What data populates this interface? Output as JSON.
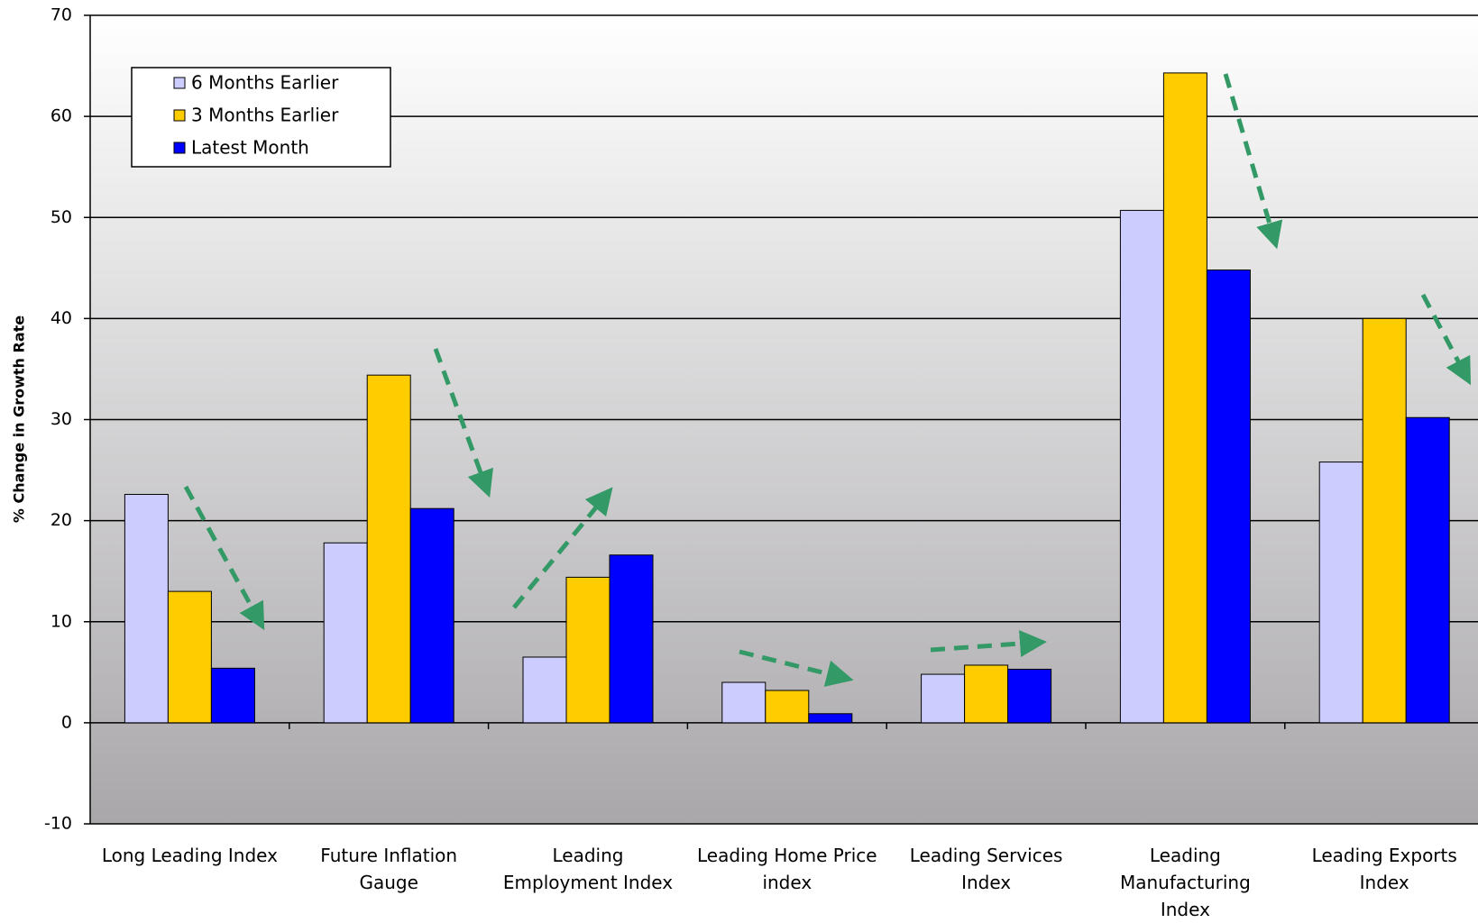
{
  "chart_data": {
    "type": "bar",
    "y_label": "% Change in Growth Rate",
    "categories": [
      "Long Leading Index",
      "Future Inflation Gauge",
      "Leading Employment Index",
      "Leading Home Price index",
      "Leading Services Index",
      "Leading Manufacturing Index",
      "Leading Exports Index"
    ],
    "series": [
      {
        "name": "6 Months Earlier",
        "color": "#ccccff",
        "values": [
          22.6,
          17.8,
          6.5,
          4.0,
          4.8,
          50.7,
          25.8
        ]
      },
      {
        "name": "3 Months Earlier",
        "color": "#ffcc00",
        "values": [
          13.0,
          34.4,
          14.4,
          3.2,
          5.7,
          64.3,
          40.0
        ]
      },
      {
        "name": "Latest Month",
        "color": "#0000ff",
        "values": [
          5.4,
          21.2,
          16.6,
          0.9,
          5.3,
          44.8,
          30.2
        ]
      }
    ],
    "ylim": [
      -10,
      70
    ],
    "yticks": [
      -10,
      0,
      10,
      20,
      30,
      40,
      50,
      60,
      70
    ],
    "grid": true,
    "legend": "top-left"
  }
}
